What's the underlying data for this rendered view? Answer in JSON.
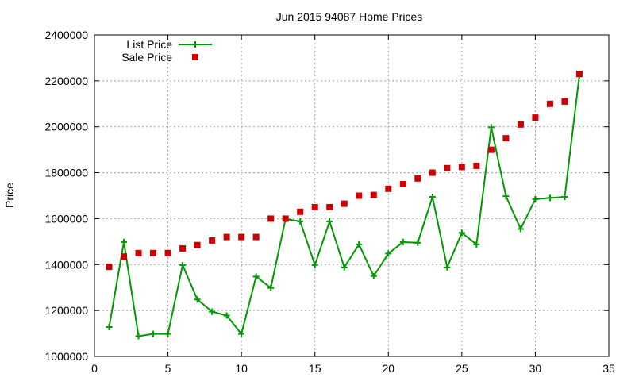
{
  "chart_data": {
    "type": "line",
    "title": "Jun 2015 94087 Home Prices",
    "xlabel": "",
    "ylabel": "Price",
    "xlim": [
      0,
      35
    ],
    "ylim": [
      1000000,
      2400000
    ],
    "x_ticks": [
      0,
      5,
      10,
      15,
      20,
      25,
      30,
      35
    ],
    "y_ticks": [
      1000000,
      1200000,
      1400000,
      1600000,
      1800000,
      2000000,
      2200000,
      2400000
    ],
    "x_tick_labels": [
      "0",
      "5",
      "10",
      "15",
      "20",
      "25",
      "30",
      "35"
    ],
    "y_tick_labels": [
      "1000000",
      "1200000",
      "1400000",
      "1600000",
      "1800000",
      "2000000",
      "2200000",
      "2400000"
    ],
    "grid": true,
    "legend_position": "top-left",
    "x": [
      1,
      2,
      3,
      4,
      5,
      6,
      7,
      8,
      9,
      10,
      11,
      12,
      13,
      14,
      15,
      16,
      17,
      18,
      19,
      20,
      21,
      22,
      23,
      24,
      25,
      26,
      27,
      28,
      29,
      30,
      31,
      32,
      33
    ],
    "series": [
      {
        "name": "List Price",
        "style": "line-plus",
        "color": "#009900",
        "values": [
          1128000,
          1498000,
          1088000,
          1098000,
          1098000,
          1398000,
          1248000,
          1195000,
          1178000,
          1098000,
          1348000,
          1298000,
          1598000,
          1588000,
          1398000,
          1588000,
          1388000,
          1488000,
          1350000,
          1448000,
          1498000,
          1495000,
          1695000,
          1388000,
          1538000,
          1488000,
          1998000,
          1698000,
          1555000,
          1685000,
          1690000,
          1695000,
          2225000
        ]
      },
      {
        "name": "Sale Price",
        "style": "square-points",
        "color": "#cc0000",
        "values": [
          1390000,
          1435000,
          1450000,
          1450000,
          1450000,
          1470000,
          1485000,
          1505000,
          1520000,
          1520000,
          1520000,
          1600000,
          1600000,
          1630000,
          1650000,
          1650000,
          1665000,
          1700000,
          1703000,
          1730000,
          1750000,
          1775000,
          1800000,
          1820000,
          1825000,
          1830000,
          1900000,
          1950000,
          2010000,
          2040000,
          2100000,
          2110000,
          2230000
        ]
      }
    ]
  }
}
